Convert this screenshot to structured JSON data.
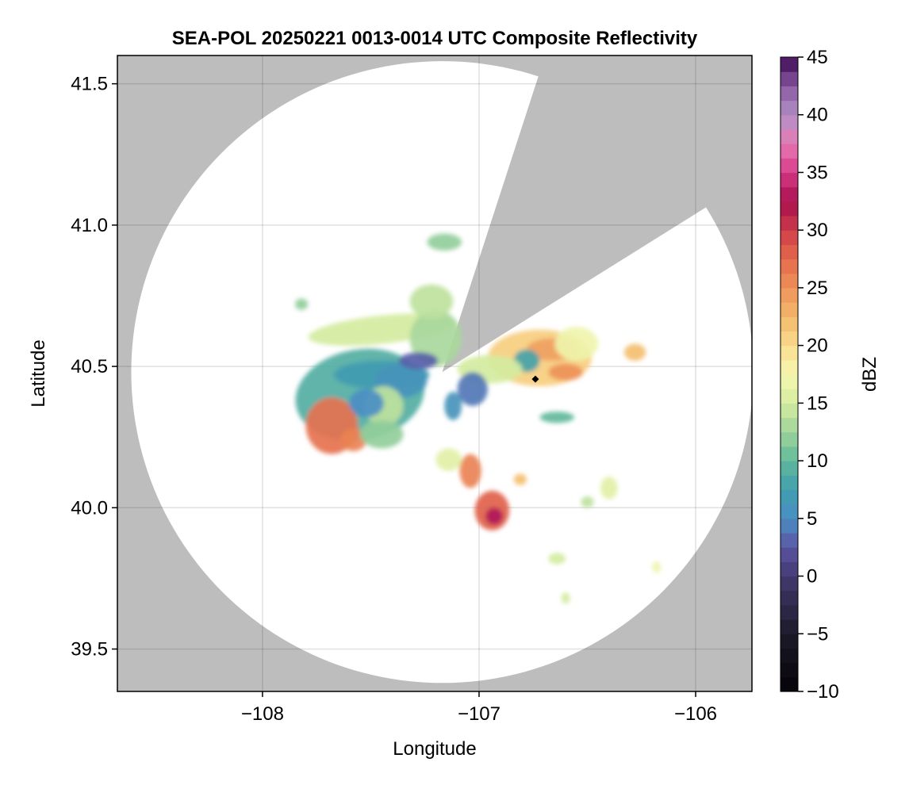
{
  "chart_data": {
    "type": "heatmap",
    "title": "SEA-POL 20250221 0013-0014 UTC Composite Reflectivity",
    "xlabel": "Longitude",
    "ylabel": "Latitude",
    "xlim": [
      -108.67,
      -105.74
    ],
    "ylim": [
      39.35,
      41.6
    ],
    "xticks": [
      -108,
      -107,
      -106
    ],
    "xtick_labels": [
      "−108",
      "−107",
      "−106"
    ],
    "yticks": [
      39.5,
      40.0,
      40.5,
      41.0,
      41.5
    ],
    "ytick_labels": [
      "39.5",
      "40.0",
      "40.5",
      "41.0",
      "41.5"
    ],
    "grid": true,
    "background_color": "#bdbdbd",
    "coverage_color": "#ffffff",
    "radar": {
      "center_lon": -107.17,
      "center_lat": 40.48,
      "range_lat_deg": 1.1,
      "blocked_sectors_deg": [
        [
          18,
          58
        ]
      ]
    },
    "marker": {
      "lon": -106.74,
      "lat": 40.455,
      "shape": "diamond",
      "color": "#000000"
    },
    "colorbar": {
      "label": "dBZ",
      "min": -10,
      "max": 45,
      "step": 1.25,
      "ticks": [
        -10,
        -5,
        0,
        5,
        10,
        15,
        20,
        25,
        30,
        35,
        40,
        45
      ],
      "tick_labels": [
        "−10",
        "−5",
        "0",
        "5",
        "10",
        "15",
        "20",
        "25",
        "30",
        "35",
        "40",
        "45"
      ],
      "colormap": [
        [
          -10,
          "#050208"
        ],
        [
          -5,
          "#1c1a28"
        ],
        [
          0,
          "#433a70"
        ],
        [
          2.5,
          "#5b55a2"
        ],
        [
          5,
          "#4a8ec4"
        ],
        [
          7.5,
          "#3f9ead"
        ],
        [
          10,
          "#61b99b"
        ],
        [
          12.5,
          "#9ed39b"
        ],
        [
          15,
          "#d4ec9f"
        ],
        [
          17.5,
          "#f6f6b0"
        ],
        [
          20,
          "#f9dc8e"
        ],
        [
          22.5,
          "#f3b869"
        ],
        [
          25,
          "#ee925a"
        ],
        [
          27.5,
          "#e46a4b"
        ],
        [
          30,
          "#cf3c48"
        ],
        [
          32.5,
          "#a80f4e"
        ],
        [
          35,
          "#d73a86"
        ],
        [
          37.5,
          "#e77ab4"
        ],
        [
          40,
          "#b090c6"
        ],
        [
          42.5,
          "#8a58a0"
        ],
        [
          45,
          "#3c0a52"
        ]
      ]
    },
    "echo_cells": [
      {
        "lon": -107.55,
        "lat": 40.4,
        "rlon": 0.3,
        "rlat": 0.16,
        "dbz": 9,
        "rot": -10
      },
      {
        "lon": -107.45,
        "lat": 40.47,
        "rlon": 0.22,
        "rlat": 0.05,
        "dbz": 7,
        "rot": 0
      },
      {
        "lon": -107.36,
        "lat": 40.45,
        "rlon": 0.12,
        "rlat": 0.06,
        "dbz": 6,
        "rot": 0
      },
      {
        "lon": -107.68,
        "lat": 40.29,
        "rlon": 0.12,
        "rlat": 0.1,
        "dbz": 27,
        "rot": 0
      },
      {
        "lon": -107.58,
        "lat": 40.24,
        "rlon": 0.06,
        "rlat": 0.04,
        "dbz": 26,
        "rot": 0
      },
      {
        "lon": -107.44,
        "lat": 40.36,
        "rlon": 0.09,
        "rlat": 0.07,
        "dbz": 14,
        "rot": 0
      },
      {
        "lon": -107.45,
        "lat": 40.26,
        "rlon": 0.1,
        "rlat": 0.05,
        "dbz": 12,
        "rot": 0
      },
      {
        "lon": -107.52,
        "lat": 40.37,
        "rlon": 0.08,
        "rlat": 0.05,
        "dbz": 5,
        "rot": 0
      },
      {
        "lon": -107.45,
        "lat": 40.63,
        "rlon": 0.34,
        "rlat": 0.05,
        "dbz": 15,
        "rot": -6
      },
      {
        "lon": -107.2,
        "lat": 40.6,
        "rlon": 0.12,
        "rlat": 0.1,
        "dbz": 13,
        "rot": 0
      },
      {
        "lon": -107.22,
        "lat": 40.73,
        "rlon": 0.1,
        "rlat": 0.06,
        "dbz": 14,
        "rot": 0
      },
      {
        "lon": -107.16,
        "lat": 40.94,
        "rlon": 0.08,
        "rlat": 0.03,
        "dbz": 12,
        "rot": 0
      },
      {
        "lon": -107.28,
        "lat": 40.52,
        "rlon": 0.09,
        "rlat": 0.03,
        "dbz": 3,
        "rot": 0
      },
      {
        "lon": -107.82,
        "lat": 40.72,
        "rlon": 0.03,
        "rlat": 0.02,
        "dbz": 12,
        "rot": 0
      },
      {
        "lon": -106.72,
        "lat": 40.53,
        "rlon": 0.24,
        "rlat": 0.1,
        "dbz": 21,
        "rot": 0
      },
      {
        "lon": -106.66,
        "lat": 40.56,
        "rlon": 0.12,
        "rlat": 0.04,
        "dbz": 24,
        "rot": 0
      },
      {
        "lon": -106.6,
        "lat": 40.48,
        "rlon": 0.08,
        "rlat": 0.03,
        "dbz": 25,
        "rot": 0
      },
      {
        "lon": -106.78,
        "lat": 40.52,
        "rlon": 0.06,
        "rlat": 0.04,
        "dbz": 8,
        "rot": 0
      },
      {
        "lon": -106.55,
        "lat": 40.58,
        "rlon": 0.1,
        "rlat": 0.06,
        "dbz": 17,
        "rot": 0
      },
      {
        "lon": -106.95,
        "lat": 40.49,
        "rlon": 0.15,
        "rlat": 0.05,
        "dbz": 15,
        "rot": 0
      },
      {
        "lon": -106.28,
        "lat": 40.55,
        "rlon": 0.05,
        "rlat": 0.03,
        "dbz": 22,
        "rot": 0
      },
      {
        "lon": -107.03,
        "lat": 40.42,
        "rlon": 0.07,
        "rlat": 0.06,
        "dbz": 4,
        "rot": 0
      },
      {
        "lon": -107.12,
        "lat": 40.36,
        "rlon": 0.04,
        "rlat": 0.05,
        "dbz": 6,
        "rot": 0
      },
      {
        "lon": -107.04,
        "lat": 40.13,
        "rlon": 0.05,
        "rlat": 0.06,
        "dbz": 26,
        "rot": 0
      },
      {
        "lon": -107.14,
        "lat": 40.17,
        "rlon": 0.06,
        "rlat": 0.04,
        "dbz": 16,
        "rot": 0
      },
      {
        "lon": -106.94,
        "lat": 39.99,
        "rlon": 0.08,
        "rlat": 0.07,
        "dbz": 28,
        "rot": 0
      },
      {
        "lon": -106.93,
        "lat": 39.97,
        "rlon": 0.04,
        "rlat": 0.03,
        "dbz": 33,
        "rot": 0
      },
      {
        "lon": -106.81,
        "lat": 40.1,
        "rlon": 0.03,
        "rlat": 0.02,
        "dbz": 22,
        "rot": 0
      },
      {
        "lon": -106.64,
        "lat": 40.32,
        "rlon": 0.08,
        "rlat": 0.02,
        "dbz": 10,
        "rot": 0
      },
      {
        "lon": -106.4,
        "lat": 40.07,
        "rlon": 0.04,
        "rlat": 0.04,
        "dbz": 16,
        "rot": 0
      },
      {
        "lon": -106.64,
        "lat": 39.82,
        "rlon": 0.04,
        "rlat": 0.02,
        "dbz": 15,
        "rot": 0
      },
      {
        "lon": -106.6,
        "lat": 39.68,
        "rlon": 0.02,
        "rlat": 0.02,
        "dbz": 15,
        "rot": 0
      },
      {
        "lon": -106.18,
        "lat": 39.79,
        "rlon": 0.02,
        "rlat": 0.02,
        "dbz": 17,
        "rot": 0
      },
      {
        "lon": -106.5,
        "lat": 40.02,
        "rlon": 0.03,
        "rlat": 0.02,
        "dbz": 14,
        "rot": 0
      }
    ]
  }
}
